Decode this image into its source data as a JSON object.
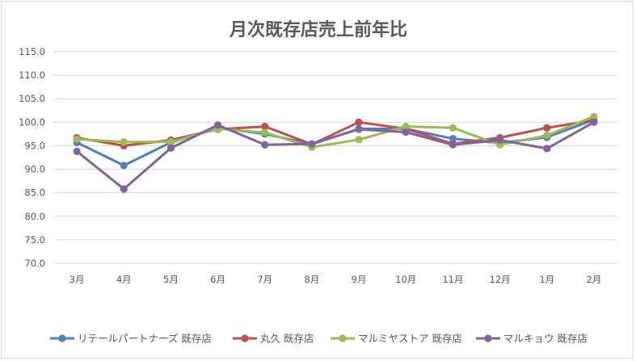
{
  "chart_data": {
    "type": "line",
    "title": "月次既存店売上前年比",
    "xlabel": "",
    "ylabel": "",
    "categories": [
      "3月",
      "4月",
      "5月",
      "6月",
      "7月",
      "8月",
      "9月",
      "10月",
      "11月",
      "12月",
      "1月",
      "2月"
    ],
    "ylim": [
      70,
      115
    ],
    "yticks": [
      "115.0",
      "110.0",
      "105.0",
      "100.0",
      "95.0",
      "90.0",
      "85.0",
      "80.0",
      "75.0",
      "70.0"
    ],
    "grid": true,
    "legend_position": "bottom",
    "series": [
      {
        "name": "リテールパートナーズ 既存店",
        "color": "#4f81bd",
        "values": [
          95.7,
          90.8,
          95.7,
          98.8,
          97.5,
          95.3,
          98.6,
          98.6,
          96.5,
          95.6,
          96.8,
          100.5
        ]
      },
      {
        "name": "丸久 既存店",
        "color": "#c0504d",
        "values": [
          96.7,
          95.0,
          96.2,
          98.5,
          99.1,
          95.3,
          100.0,
          98.6,
          95.4,
          96.7,
          98.8,
          100.4
        ]
      },
      {
        "name": "マルミヤストア 既存店",
        "color": "#9bbb59",
        "values": [
          96.4,
          95.8,
          95.8,
          98.6,
          97.8,
          94.7,
          96.3,
          99.1,
          98.8,
          95.2,
          97.2,
          101.2
        ]
      },
      {
        "name": "マルキョウ 既存店",
        "color": "#8064a2",
        "values": [
          93.8,
          85.8,
          94.5,
          99.4,
          95.2,
          95.4,
          98.5,
          97.9,
          95.2,
          96.2,
          94.4,
          100.0
        ]
      }
    ]
  }
}
